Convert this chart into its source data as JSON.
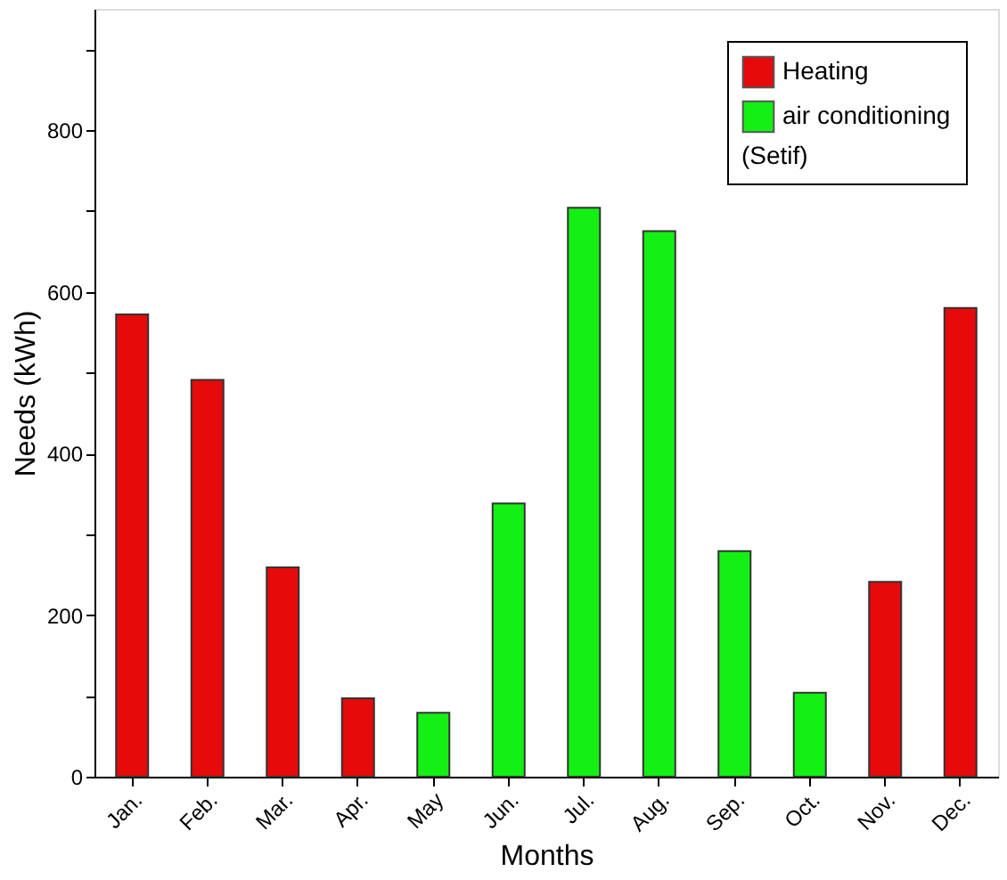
{
  "chart_data": {
    "type": "bar",
    "categories": [
      "Jan.",
      "Feb.",
      "Mar.",
      "Apr.",
      "May",
      "Jun.",
      "Jul.",
      "Aug.",
      "Sep.",
      "Oct.",
      "Nov.",
      "Dec."
    ],
    "series": [
      {
        "name": "Heating",
        "color": "#e60a0a",
        "values": [
          572,
          491,
          259,
          97,
          null,
          null,
          null,
          null,
          null,
          null,
          241,
          580
        ]
      },
      {
        "name": "air conditioning",
        "color": "#14f014",
        "values": [
          null,
          null,
          null,
          null,
          79,
          338,
          704,
          675,
          279,
          104,
          null,
          null
        ]
      }
    ],
    "xlabel": "Months",
    "ylabel": "Needs (kWh)",
    "legend_title": "(Setif)",
    "legend": "top right",
    "ylim": [
      0,
      950
    ],
    "yticks": [
      0,
      {
        "value": 100,
        "label": null
      },
      200,
      {
        "value": 300,
        "label": null
      },
      400,
      {
        "value": 500,
        "label": null
      },
      600,
      {
        "value": 700,
        "label": null
      },
      800,
      {
        "value": 900,
        "label": null
      }
    ],
    "grid": false
  }
}
